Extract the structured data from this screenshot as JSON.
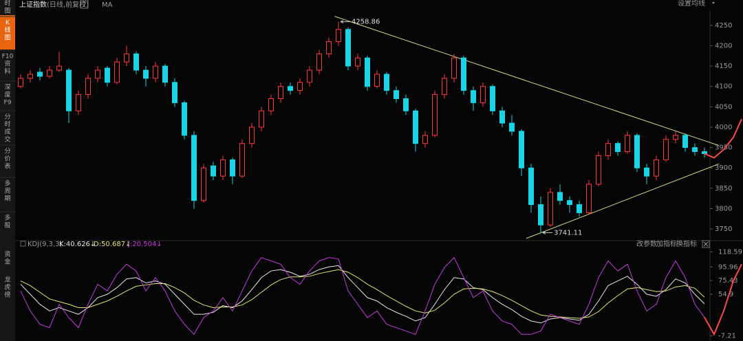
{
  "header": {
    "title": "上证指数",
    "subtitle": "(日线,前复权)",
    "help": "?",
    "ma": "MA",
    "settings": "设置均线"
  },
  "sidebar": {
    "items": [
      {
        "lines": [
          "时",
          "图"
        ]
      },
      {
        "lines": [
          "K",
          "线",
          "图"
        ]
      },
      {
        "lines": [
          "F10",
          "资",
          "料"
        ]
      },
      {
        "lines": [
          "深",
          "度",
          "F9"
        ]
      },
      {
        "lines": [
          "分",
          "时",
          "成",
          "交"
        ]
      },
      {
        "lines": [
          "分",
          "价",
          "表"
        ]
      },
      {
        "lines": [
          "多",
          "周",
          "期"
        ]
      },
      {
        "lines": [
          "多",
          "股"
        ]
      }
    ],
    "lower_items": [
      {
        "lines": [
          "资",
          "金"
        ]
      },
      {
        "lines": [
          "龙",
          "虎",
          "榜"
        ]
      }
    ]
  },
  "chart_data": [
    {
      "type": "candlestick",
      "up_color": "#ff3b3b",
      "down_color": "#18d4e4",
      "candles": [
        [
          4100,
          4130,
          4095,
          4120
        ],
        [
          4120,
          4140,
          4110,
          4130
        ],
        [
          4135,
          4145,
          4115,
          4125
        ],
        [
          4125,
          4150,
          4120,
          4140
        ],
        [
          4140,
          4185,
          4135,
          4150
        ],
        [
          4140,
          4145,
          4010,
          4040
        ],
        [
          4040,
          4090,
          4030,
          4080
        ],
        [
          4080,
          4130,
          4070,
          4120
        ],
        [
          4120,
          4150,
          4110,
          4140
        ],
        [
          4145,
          4150,
          4100,
          4110
        ],
        [
          4110,
          4170,
          4105,
          4160
        ],
        [
          4160,
          4200,
          4150,
          4180
        ],
        [
          4180,
          4185,
          4130,
          4140
        ],
        [
          4140,
          4150,
          4100,
          4120
        ],
        [
          4120,
          4160,
          4110,
          4150
        ],
        [
          4150,
          4155,
          4100,
          4110
        ],
        [
          4110,
          4120,
          4050,
          4060
        ],
        [
          4060,
          4065,
          3970,
          3980
        ],
        [
          3980,
          3990,
          3800,
          3820
        ],
        [
          3820,
          3910,
          3815,
          3900
        ],
        [
          3905,
          3915,
          3870,
          3880
        ],
        [
          3880,
          3930,
          3870,
          3920
        ],
        [
          3920,
          3925,
          3860,
          3880
        ],
        [
          3880,
          3970,
          3875,
          3960
        ],
        [
          3960,
          4010,
          3950,
          4000
        ],
        [
          4000,
          4050,
          3990,
          4040
        ],
        [
          4040,
          4080,
          4030,
          4070
        ],
        [
          4070,
          4110,
          4060,
          4100
        ],
        [
          4100,
          4110,
          4080,
          4090
        ],
        [
          4090,
          4120,
          4080,
          4110
        ],
        [
          4110,
          4150,
          4100,
          4140
        ],
        [
          4140,
          4190,
          4130,
          4180
        ],
        [
          4180,
          4220,
          4170,
          4210
        ],
        [
          4210,
          4258.86,
          4200,
          4240
        ],
        [
          4240,
          4245,
          4140,
          4150
        ],
        [
          4150,
          4180,
          4140,
          4170
        ],
        [
          4170,
          4175,
          4090,
          4100
        ],
        [
          4100,
          4140,
          4095,
          4130
        ],
        [
          4130,
          4135,
          4080,
          4090
        ],
        [
          4090,
          4100,
          4060,
          4070
        ],
        [
          4070,
          4080,
          4030,
          4040
        ],
        [
          4040,
          4045,
          3940,
          3960
        ],
        [
          3960,
          3990,
          3950,
          3980
        ],
        [
          3980,
          4090,
          3975,
          4080
        ],
        [
          4080,
          4130,
          4070,
          4120
        ],
        [
          4120,
          4180,
          4110,
          4170
        ],
        [
          4170,
          4175,
          4080,
          4090
        ],
        [
          4090,
          4100,
          4040,
          4060
        ],
        [
          4060,
          4110,
          4050,
          4100
        ],
        [
          4100,
          4105,
          4030,
          4040
        ],
        [
          4040,
          4050,
          4000,
          4010
        ],
        [
          4010,
          4030,
          3980,
          3990
        ],
        [
          3990,
          3995,
          3880,
          3900
        ],
        [
          3900,
          3910,
          3790,
          3810
        ],
        [
          3810,
          3830,
          3741.11,
          3760
        ],
        [
          3760,
          3850,
          3755,
          3840
        ],
        [
          3840,
          3860,
          3810,
          3820
        ],
        [
          3820,
          3830,
          3790,
          3810
        ],
        [
          3810,
          3820,
          3780,
          3790
        ],
        [
          3790,
          3870,
          3785,
          3860
        ],
        [
          3860,
          3940,
          3855,
          3930
        ],
        [
          3930,
          3970,
          3920,
          3960
        ],
        [
          3960,
          3965,
          3930,
          3940
        ],
        [
          3940,
          3990,
          3935,
          3980
        ],
        [
          3980,
          3985,
          3890,
          3900
        ],
        [
          3900,
          3910,
          3860,
          3880
        ],
        [
          3880,
          3930,
          3870,
          3920
        ],
        [
          3920,
          3980,
          3915,
          3970
        ],
        [
          3970,
          3990,
          3960,
          3980
        ],
        [
          3980,
          3985,
          3940,
          3950
        ],
        [
          3950,
          3960,
          3930,
          3940
        ],
        [
          3940,
          3950,
          3925,
          3935
        ]
      ],
      "high_label": 4258.86,
      "low_label": 3741.11,
      "trendlines": {
        "color": "#d6d98a",
        "lines": [
          {
            "x": [
              32.6,
              72.5
            ],
            "values": [
              4272,
              3955
            ]
          },
          {
            "x": [
              52.5,
              72.5
            ],
            "values": [
              3727,
              3910
            ]
          }
        ]
      },
      "projection": {
        "color": "#ff4a4a",
        "values": [
          null,
          null,
          null,
          null,
          null,
          null,
          null,
          null,
          null,
          null,
          null,
          null,
          null,
          null,
          null,
          null,
          null,
          null,
          null,
          null,
          null,
          null,
          null,
          null,
          null,
          null,
          null,
          null,
          null,
          null,
          null,
          null,
          null,
          null,
          null,
          null,
          null,
          null,
          null,
          null,
          null,
          null,
          null,
          null,
          null,
          null,
          null,
          null,
          null,
          null,
          null,
          null,
          null,
          null,
          null,
          null,
          null,
          null,
          null,
          null,
          null,
          null,
          null,
          null,
          null,
          null,
          null,
          null,
          null,
          null,
          null,
          3935,
          3925,
          3945,
          3975,
          4020
        ]
      },
      "ylim": [
        3730,
        4275
      ],
      "yticks": [
        3750,
        3800,
        3850,
        3900,
        3950,
        4000,
        4050,
        4100,
        4150,
        4200,
        4250
      ]
    },
    {
      "type": "line",
      "indicator": "KDJ(9,3,3)",
      "buttons": [
        "改参数",
        "加指标",
        "换指标"
      ],
      "series": [
        {
          "name": "K",
          "label": "K:40.626↓",
          "color": "#e8e8e8",
          "values": [
            70,
            55,
            40,
            30,
            35,
            30,
            25,
            35,
            50,
            55,
            65,
            78,
            80,
            72,
            75,
            70,
            55,
            40,
            25,
            25,
            28,
            38,
            35,
            45,
            62,
            80,
            90,
            92,
            88,
            82,
            85,
            92,
            96,
            98,
            80,
            65,
            50,
            45,
            35,
            28,
            22,
            15,
            20,
            40,
            62,
            80,
            78,
            65,
            62,
            50,
            40,
            32,
            22,
            15,
            12,
            18,
            20,
            18,
            16,
            25,
            45,
            68,
            75,
            82,
            70,
            55,
            52,
            62,
            78,
            72,
            55,
            40.626
          ]
        },
        {
          "name": "D",
          "label": "D:50.687↓",
          "color": "#e6e27a",
          "values": [
            75,
            68,
            58,
            48,
            44,
            40,
            35,
            35,
            40,
            45,
            52,
            60,
            67,
            69,
            71,
            71,
            65,
            57,
            46,
            39,
            35,
            36,
            36,
            39,
            47,
            58,
            69,
            77,
            81,
            81,
            82,
            86,
            89,
            92,
            88,
            80,
            70,
            62,
            53,
            45,
            37,
            30,
            27,
            31,
            42,
            55,
            63,
            64,
            63,
            59,
            53,
            46,
            38,
            30,
            24,
            22,
            21,
            20,
            19,
            21,
            29,
            42,
            53,
            63,
            65,
            62,
            59,
            60,
            66,
            68,
            64,
            50.687
          ]
        },
        {
          "name": "J",
          "label": "J:20.504↓",
          "color": "#c040d8",
          "values": [
            60,
            30,
            10,
            5,
            40,
            20,
            5,
            40,
            70,
            60,
            85,
            100,
            90,
            60,
            80,
            60,
            30,
            10,
            -5,
            20,
            30,
            50,
            30,
            60,
            90,
            110,
            105,
            100,
            80,
            70,
            90,
            105,
            110,
            108,
            60,
            40,
            20,
            30,
            10,
            5,
            0,
            -5,
            30,
            70,
            95,
            110,
            80,
            50,
            60,
            30,
            15,
            10,
            -5,
            -5,
            0,
            25,
            20,
            15,
            10,
            40,
            80,
            105,
            90,
            100,
            60,
            30,
            40,
            80,
            105,
            80,
            40,
            20.504
          ]
        }
      ],
      "projection": {
        "color": "#ff4a4a",
        "values": [
          null,
          null,
          null,
          null,
          null,
          null,
          null,
          null,
          null,
          null,
          null,
          null,
          null,
          null,
          null,
          null,
          null,
          null,
          null,
          null,
          null,
          null,
          null,
          null,
          null,
          null,
          null,
          null,
          null,
          null,
          null,
          null,
          null,
          null,
          null,
          null,
          null,
          null,
          null,
          null,
          null,
          null,
          null,
          null,
          null,
          null,
          null,
          null,
          null,
          null,
          null,
          null,
          null,
          null,
          null,
          null,
          null,
          null,
          null,
          null,
          null,
          null,
          null,
          null,
          null,
          null,
          null,
          null,
          null,
          null,
          null,
          20.504,
          -5,
          30,
          75,
          100
        ]
      },
      "ylim": [
        -15,
        123
      ],
      "yticks": [
        118.59,
        95.96,
        75.43,
        54.9,
        -7.21
      ]
    }
  ]
}
